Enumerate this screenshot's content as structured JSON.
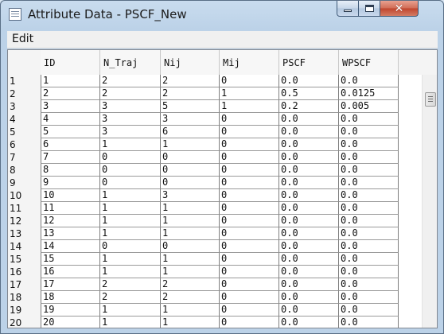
{
  "window": {
    "title": "Attribute Data - PSCF_New"
  },
  "menu": {
    "edit": "Edit"
  },
  "icons": {
    "app": "table-icon",
    "minimize": "minimize-icon",
    "maximize": "maximize-icon",
    "close": "close-icon"
  },
  "close_glyph": "✕",
  "table": {
    "columns": [
      "ID",
      "N_Traj",
      "Nij",
      "Mij",
      "PSCF",
      "WPSCF"
    ],
    "rows": [
      [
        "1",
        "1",
        "2",
        "2",
        "0",
        "0.0",
        "0.0"
      ],
      [
        "2",
        "2",
        "2",
        "2",
        "1",
        "0.5",
        "0.0125"
      ],
      [
        "3",
        "3",
        "3",
        "5",
        "1",
        "0.2",
        "0.005"
      ],
      [
        "4",
        "4",
        "3",
        "3",
        "0",
        "0.0",
        "0.0"
      ],
      [
        "5",
        "5",
        "3",
        "6",
        "0",
        "0.0",
        "0.0"
      ],
      [
        "6",
        "6",
        "1",
        "1",
        "0",
        "0.0",
        "0.0"
      ],
      [
        "7",
        "7",
        "0",
        "0",
        "0",
        "0.0",
        "0.0"
      ],
      [
        "8",
        "8",
        "0",
        "0",
        "0",
        "0.0",
        "0.0"
      ],
      [
        "9",
        "9",
        "0",
        "0",
        "0",
        "0.0",
        "0.0"
      ],
      [
        "10",
        "10",
        "1",
        "3",
        "0",
        "0.0",
        "0.0"
      ],
      [
        "11",
        "11",
        "1",
        "1",
        "0",
        "0.0",
        "0.0"
      ],
      [
        "12",
        "12",
        "1",
        "1",
        "0",
        "0.0",
        "0.0"
      ],
      [
        "13",
        "13",
        "1",
        "1",
        "0",
        "0.0",
        "0.0"
      ],
      [
        "14",
        "14",
        "0",
        "0",
        "0",
        "0.0",
        "0.0"
      ],
      [
        "15",
        "15",
        "1",
        "1",
        "0",
        "0.0",
        "0.0"
      ],
      [
        "16",
        "16",
        "1",
        "1",
        "0",
        "0.0",
        "0.0"
      ],
      [
        "17",
        "17",
        "2",
        "2",
        "0",
        "0.0",
        "0.0"
      ],
      [
        "18",
        "18",
        "2",
        "2",
        "0",
        "0.0",
        "0.0"
      ],
      [
        "19",
        "19",
        "1",
        "1",
        "0",
        "0.0",
        "0.0"
      ],
      [
        "20",
        "20",
        "1",
        "1",
        "0",
        "0.0",
        "0.0"
      ]
    ]
  }
}
